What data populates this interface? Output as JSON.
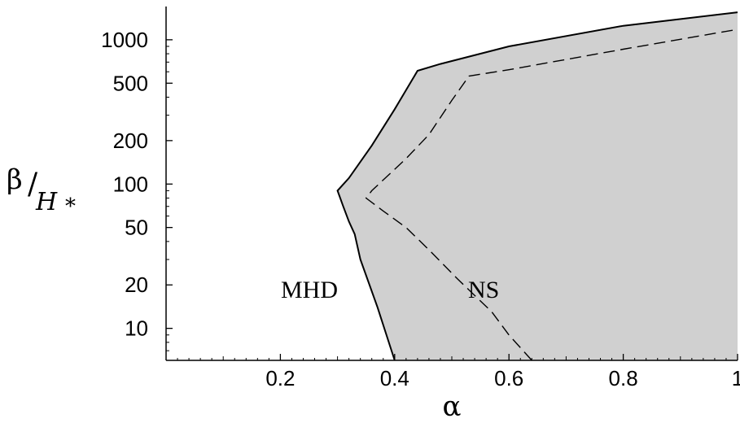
{
  "chart_data": {
    "type": "area",
    "title": "",
    "xlabel": "α",
    "ylabel": {
      "main": "β",
      "slash": "/",
      "sub": "H",
      "sup": "*"
    },
    "x_range": [
      0,
      1
    ],
    "y_range": [
      6,
      1700
    ],
    "y_scale": "log",
    "x_ticks": [
      {
        "value": 0.2,
        "label": "0.2"
      },
      {
        "value": 0.4,
        "label": "0.4"
      },
      {
        "value": 0.6,
        "label": "0.6"
      },
      {
        "value": 0.8,
        "label": "0.8"
      },
      {
        "value": 1.0,
        "label": "1"
      }
    ],
    "y_ticks": [
      {
        "value": 10,
        "label": "10"
      },
      {
        "value": 20,
        "label": "20"
      },
      {
        "value": 50,
        "label": "50"
      },
      {
        "value": 100,
        "label": "100"
      },
      {
        "value": 200,
        "label": "200"
      },
      {
        "value": 500,
        "label": "500"
      },
      {
        "value": 1000,
        "label": "1000"
      }
    ],
    "series": [
      {
        "name": "MHD",
        "style": "solid",
        "fill": "#d0d0d0",
        "points": [
          [
            0.4,
            6
          ],
          [
            0.37,
            14
          ],
          [
            0.34,
            30
          ],
          [
            0.33,
            45
          ],
          [
            0.32,
            55
          ],
          [
            0.31,
            70
          ],
          [
            0.3,
            90
          ],
          [
            0.32,
            110
          ],
          [
            0.36,
            185
          ],
          [
            0.4,
            330
          ],
          [
            0.44,
            610
          ],
          [
            0.48,
            680
          ],
          [
            0.6,
            900
          ],
          [
            0.8,
            1250
          ],
          [
            1.0,
            1550
          ]
        ]
      },
      {
        "name": "NS",
        "style": "dashed",
        "points": [
          [
            0.64,
            6
          ],
          [
            0.6,
            9
          ],
          [
            0.57,
            13
          ],
          [
            0.51,
            22
          ],
          [
            0.46,
            35
          ],
          [
            0.42,
            50
          ],
          [
            0.38,
            65
          ],
          [
            0.35,
            80
          ],
          [
            0.36,
            90
          ],
          [
            0.42,
            150
          ],
          [
            0.46,
            220
          ],
          [
            0.5,
            380
          ],
          [
            0.53,
            560
          ],
          [
            0.6,
            620
          ],
          [
            0.8,
            860
          ],
          [
            1.0,
            1180
          ]
        ]
      }
    ],
    "annotations": [
      {
        "text": "MHD",
        "x": 0.27,
        "y": 18
      },
      {
        "text": "NS",
        "x": 0.57,
        "y": 18
      }
    ]
  }
}
